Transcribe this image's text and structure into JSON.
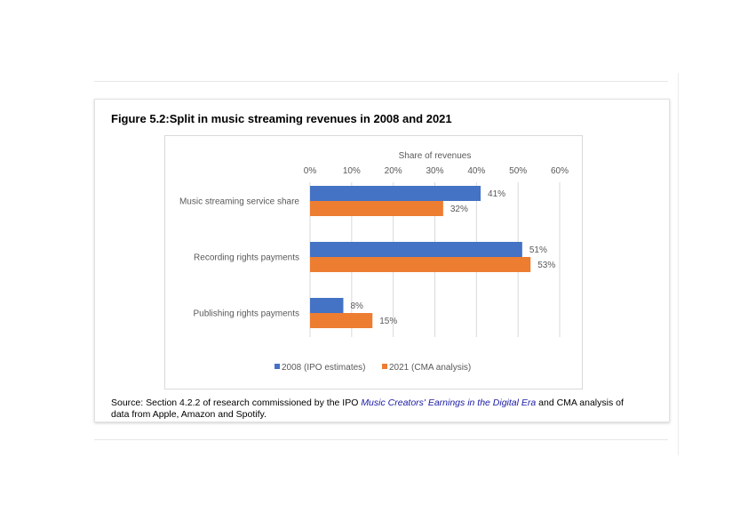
{
  "figure": {
    "title": "Figure 5.2:Split in music streaming revenues in 2008 and 2021"
  },
  "source": {
    "prefix": "Source: Section 4.2.2 of research commissioned by the IPO ",
    "link_text": "Music Creators' Earnings in the Digital Era",
    "suffix": " and CMA analysis of data from Apple, Amazon and Spotify."
  },
  "chart_data": {
    "type": "bar",
    "orientation": "horizontal",
    "title": "",
    "xlabel": "Share of revenues",
    "ylabel": "",
    "xlim": [
      0,
      60
    ],
    "ticks": [
      "0%",
      "10%",
      "20%",
      "30%",
      "40%",
      "50%",
      "60%"
    ],
    "tick_values": [
      0,
      10,
      20,
      30,
      40,
      50,
      60
    ],
    "grid": true,
    "axis_position": "top",
    "legend_position": "bottom",
    "categories": [
      "Music streaming service share",
      "Recording rights payments",
      "Publishing rights payments"
    ],
    "series": [
      {
        "name": "2008 (IPO estimates)",
        "values": [
          41,
          51,
          8
        ],
        "labels": [
          "41%",
          "51%",
          "8%"
        ],
        "color": "#4472c4"
      },
      {
        "name": "2021 (CMA analysis)",
        "values": [
          32,
          53,
          15
        ],
        "labels": [
          "32%",
          "53%",
          "15%"
        ],
        "color": "#ed7d31"
      }
    ]
  }
}
